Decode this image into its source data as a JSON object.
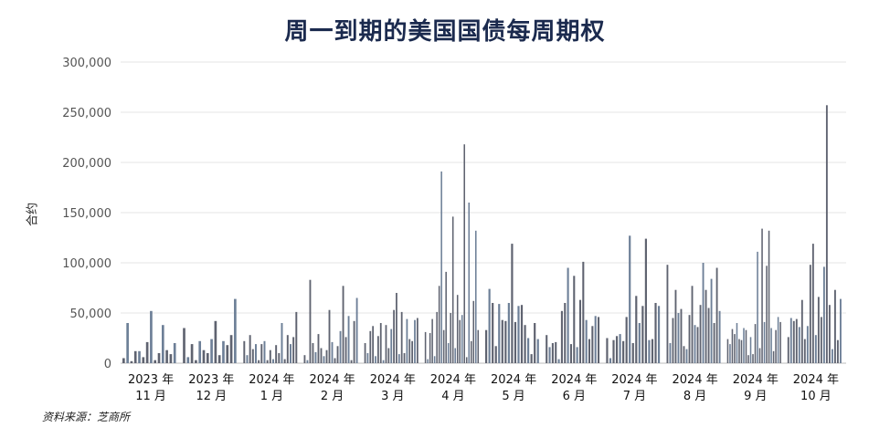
{
  "chart_data": {
    "type": "bar",
    "title": "周一到期的美国国债每周期权",
    "ylabel": "合约",
    "xlabel": "",
    "source": "资料来源：芝商所",
    "ylim": [
      0,
      300000
    ],
    "yticks": [
      "0",
      "50,000",
      "100,000",
      "150,000",
      "200,000",
      "250,000",
      "300,000"
    ],
    "ytick_values": [
      0,
      50000,
      100000,
      150000,
      200000,
      250000,
      300000
    ],
    "grid": true,
    "colors": {
      "bar_dark": "#5f6370",
      "bar_blue": "#6d7f97",
      "title": "#1b2a4e",
      "grid": "#e4e4e4"
    },
    "months": [
      {
        "label": "2023 年\n11 月",
        "values": [
          5000,
          40000,
          2000,
          12000,
          12000,
          6000,
          21000,
          52000,
          3000,
          10000,
          38000,
          13000,
          9000,
          20000
        ]
      },
      {
        "label": "2023 年\n12 月",
        "values": [
          35000,
          6000,
          19000,
          3000,
          22000,
          13000,
          10000,
          24000,
          42000,
          8000,
          22000,
          18000,
          28000,
          64000
        ]
      },
      {
        "label": "2024 年\n1 月",
        "values": [
          22000,
          8000,
          28000,
          14000,
          19000,
          3000,
          19000,
          22000,
          3000,
          13000,
          4000,
          18000,
          10000,
          40000,
          4000,
          28000,
          19000,
          26000,
          51000
        ]
      },
      {
        "label": "2024 年\n2 月",
        "values": [
          8000,
          3000,
          83000,
          20000,
          11000,
          29000,
          15000,
          7000,
          13000,
          53000,
          21000,
          5000,
          17000,
          32000,
          77000,
          26000,
          47000,
          3000,
          42000,
          65000
        ]
      },
      {
        "label": "2024 年\n3 月",
        "values": [
          20000,
          10000,
          32000,
          37000,
          7000,
          27000,
          40000,
          3000,
          38000,
          15000,
          34000,
          53000,
          70000,
          9000,
          51000,
          10000,
          44000,
          24000,
          22000,
          43000,
          45000
        ]
      },
      {
        "label": "2024 年\n4 月",
        "values": [
          31000,
          4000,
          30000,
          44000,
          7000,
          51000,
          77000,
          191000,
          33000,
          91000,
          20000,
          50000,
          146000,
          15000,
          68000,
          43000,
          48000,
          218000,
          6000,
          160000,
          22000,
          62000,
          132000,
          33000
        ]
      },
      {
        "label": "2024 年\n5 月",
        "values": [
          33000,
          74000,
          60000,
          17000,
          59000,
          43000,
          42000,
          60000,
          119000,
          41000,
          57000,
          58000,
          38000,
          25000,
          9000,
          40000,
          24000
        ]
      },
      {
        "label": "2024 年\n6 月",
        "values": [
          28000,
          16000,
          20000,
          21000,
          4000,
          52000,
          60000,
          95000,
          19000,
          87000,
          16000,
          63000,
          101000,
          43000,
          24000,
          37000,
          47000,
          46000
        ]
      },
      {
        "label": "2024 年\n7 月",
        "values": [
          25000,
          5000,
          23000,
          27000,
          29000,
          22000,
          46000,
          127000,
          20000,
          67000,
          40000,
          57000,
          124000,
          23000,
          24000,
          60000,
          57000
        ]
      },
      {
        "label": "2024 年\n8 月",
        "values": [
          98000,
          20000,
          45000,
          73000,
          50000,
          54000,
          17000,
          14000,
          48000,
          77000,
          38000,
          36000,
          58000,
          100000,
          73000,
          55000,
          84000,
          40000,
          95000,
          52000
        ]
      },
      {
        "label": "2024 年\n9 月",
        "values": [
          24000,
          19000,
          34000,
          29000,
          40000,
          24000,
          23000,
          35000,
          33000,
          8000,
          26000,
          9000,
          39000,
          111000,
          15000,
          134000,
          41000,
          97000,
          132000,
          35000,
          12000,
          33000,
          46000,
          41000
        ]
      },
      {
        "label": "2024 年\n10 月",
        "values": [
          26000,
          45000,
          42000,
          44000,
          36000,
          63000,
          24000,
          37000,
          98000,
          119000,
          28000,
          66000,
          46000,
          96000,
          257000,
          58000,
          14000,
          73000,
          23000,
          64000
        ]
      }
    ]
  }
}
